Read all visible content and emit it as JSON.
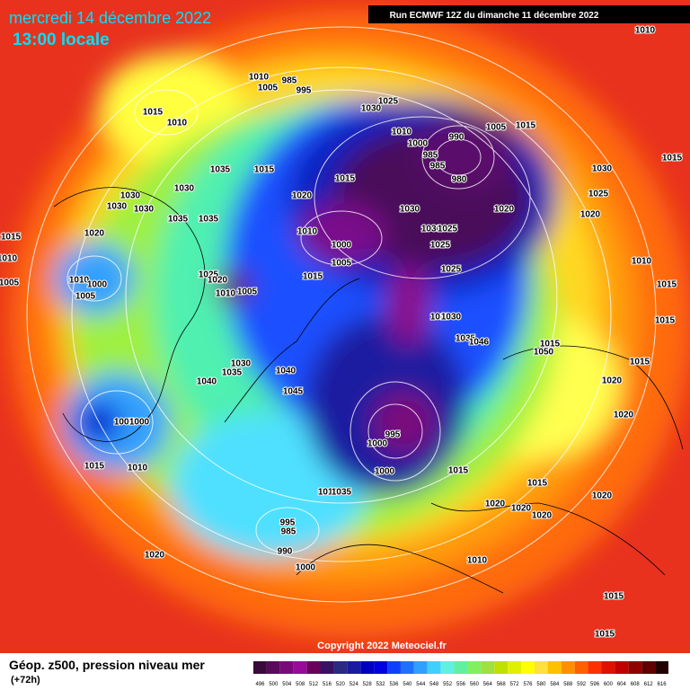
{
  "header": {
    "date": "mercredi 14 décembre 2022",
    "time": "13:00 locale",
    "run": "Run ECMWF 12Z du dimanche 11 décembre 2022"
  },
  "isobar_labels": [
    1010,
    1015,
    1010,
    1035,
    1015,
    1030,
    1030,
    1030,
    1030,
    1035,
    1035,
    1020,
    1015,
    1010,
    1010,
    1005,
    1000,
    1005,
    1010,
    1005,
    985,
    995,
    1025,
    1030,
    1010,
    1000,
    990,
    1005,
    1015,
    985,
    985,
    980,
    1015,
    1020,
    1030,
    1020,
    1030,
    1015,
    1025,
    1020,
    1010,
    1000,
    1030,
    1025,
    1025,
    1005,
    1025,
    1010,
    1015,
    1025,
    1020,
    1010,
    1005,
    1015,
    1010,
    1030,
    1035,
    1046,
    1015,
    1050,
    1015,
    1015,
    1030,
    1035,
    1040,
    1040,
    1045,
    1020,
    1005,
    1000,
    995,
    1000,
    1020,
    1015,
    1010,
    1000,
    1015,
    1015,
    1010,
    1035,
    1020,
    1020,
    1020,
    1020,
    995,
    985,
    990,
    1010,
    1020,
    1000,
    1015,
    1015
  ],
  "copyright": "Copyright 2022 Meteociel.fr",
  "footer": {
    "title": "Géop. z500, pression niveau mer",
    "lead": "(+72h)"
  },
  "legend": {
    "labels": [
      496,
      500,
      504,
      508,
      512,
      516,
      520,
      524,
      528,
      532,
      536,
      540,
      544,
      548,
      552,
      556,
      560,
      564,
      568,
      572,
      576,
      580,
      584,
      588,
      592,
      596,
      600,
      604,
      608,
      612,
      616
    ]
  }
}
